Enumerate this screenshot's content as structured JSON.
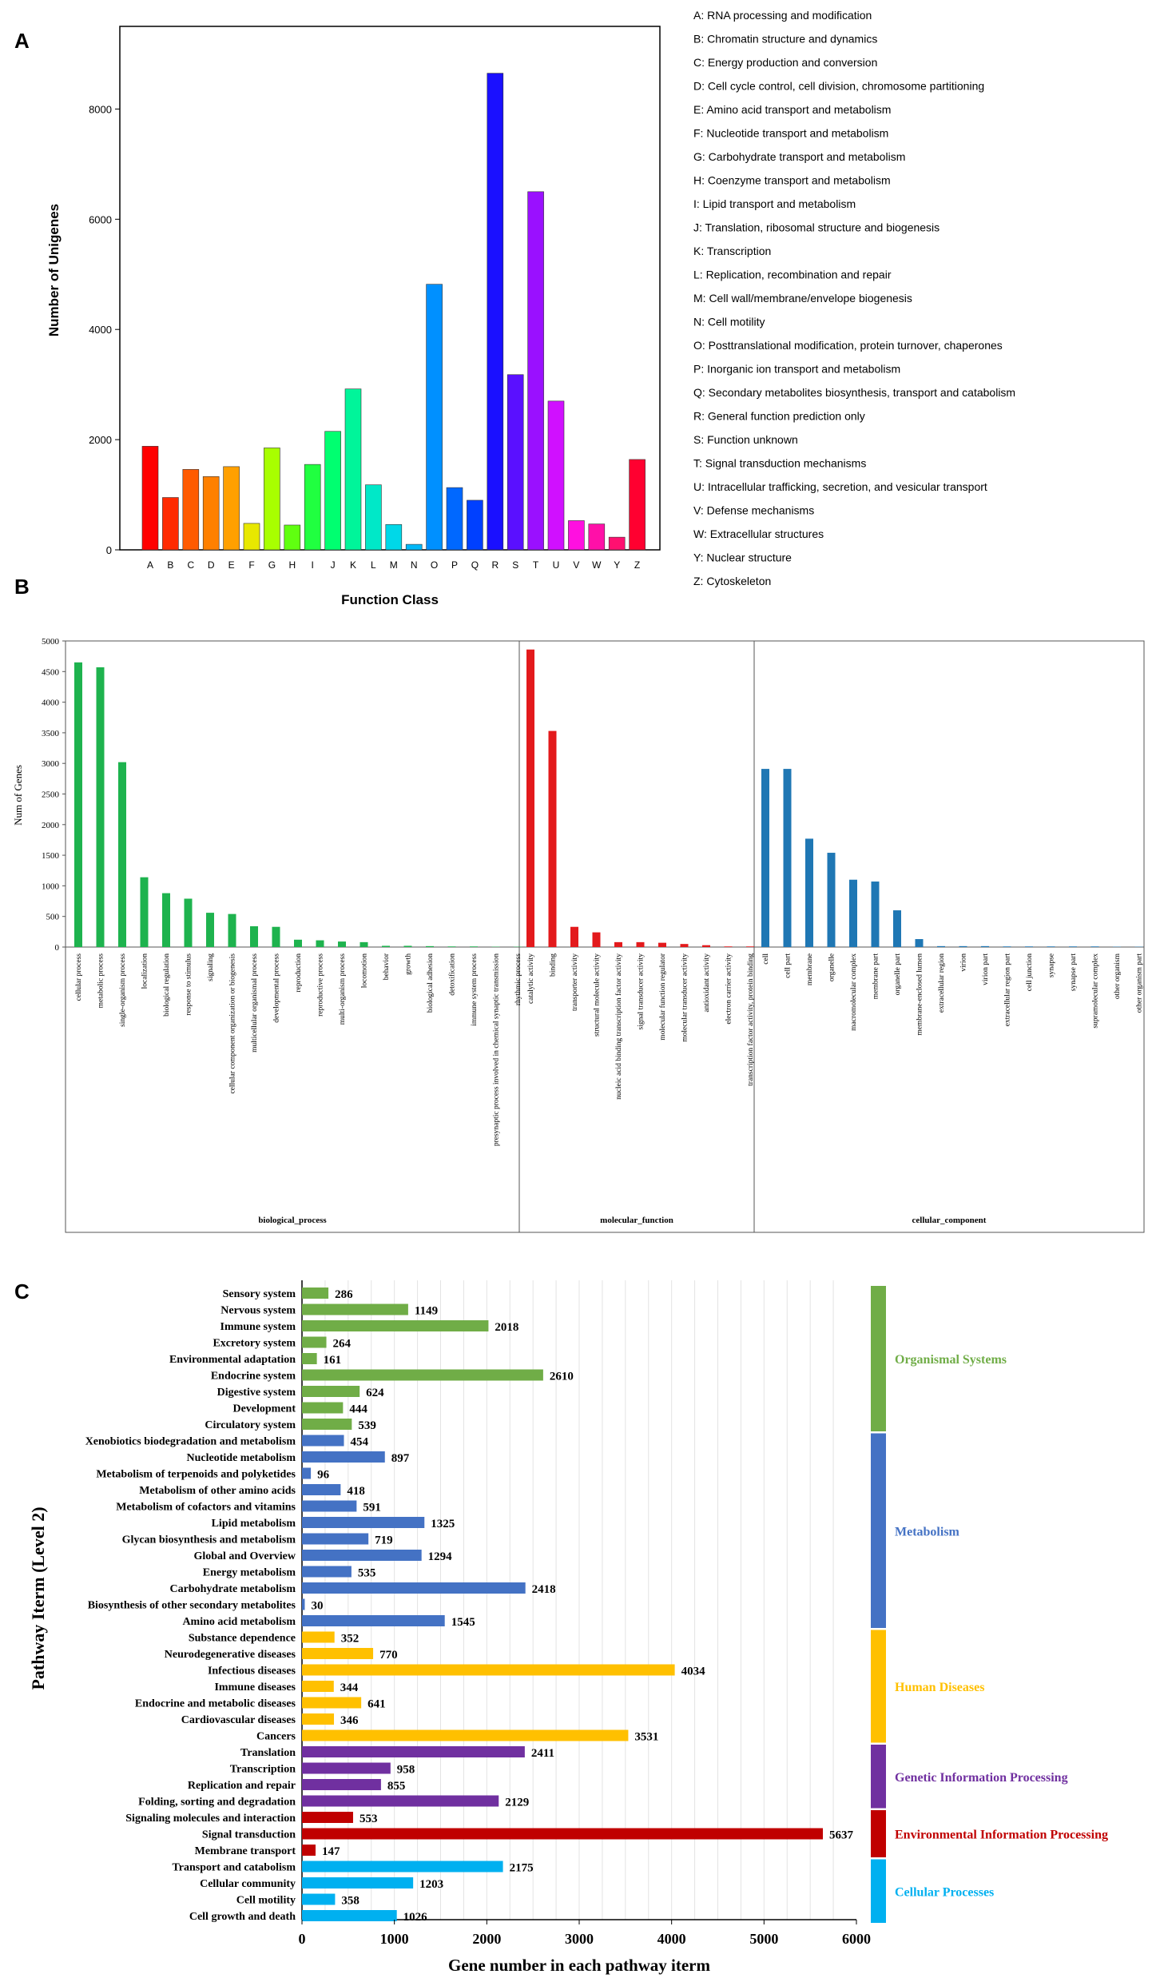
{
  "panels": {
    "a": "A",
    "b": "B",
    "c": "C"
  },
  "colors": {
    "organismal": "#70AD47",
    "metabolism": "#4472C4",
    "human_diseases": "#FFC000",
    "genetic": "#7030A0",
    "environmental": "#C00000",
    "cellular_processes": "#00B0F0",
    "bp": "#1EB34E",
    "mf": "#E31A1C",
    "cc": "#1F77B4"
  },
  "chart_data": [
    {
      "type": "bar",
      "panel": "A",
      "xlabel": "Function Class",
      "ylabel": "Number of Unigenes",
      "ylim": [
        0,
        9500
      ],
      "yticks": [
        0,
        2000,
        4000,
        6000,
        8000
      ],
      "grid": false,
      "legend_position": "right",
      "categories": [
        "A",
        "B",
        "C",
        "D",
        "E",
        "F",
        "G",
        "H",
        "I",
        "J",
        "K",
        "L",
        "M",
        "N",
        "O",
        "P",
        "Q",
        "R",
        "S",
        "T",
        "U",
        "V",
        "W",
        "Y",
        "Z"
      ],
      "values": [
        1880,
        950,
        1460,
        1330,
        1510,
        480,
        1850,
        450,
        1550,
        2150,
        2920,
        1180,
        460,
        100,
        4820,
        1130,
        900,
        8650,
        3180,
        6500,
        2700,
        530,
        470,
        230,
        1640
      ],
      "bar_colors": [
        "#FF0000",
        "#FF2A00",
        "#FF5A00",
        "#FF8000",
        "#FFA000",
        "#E8E800",
        "#A8FF00",
        "#60FF10",
        "#20FF40",
        "#00FF70",
        "#00F59A",
        "#00E8C8",
        "#00D8E8",
        "#00B8F8",
        "#0090FF",
        "#0068FF",
        "#0040FF",
        "#1A10FF",
        "#5A10FF",
        "#9A10FF",
        "#D010FF",
        "#FF10E0",
        "#FF10A8",
        "#FF1070",
        "#FF0030"
      ],
      "legend": [
        "A: RNA processing and modification",
        "B: Chromatin structure and dynamics",
        "C: Energy production and conversion",
        "D: Cell cycle control, cell division, chromosome partitioning",
        "E: Amino acid transport and metabolism",
        "F: Nucleotide transport and metabolism",
        "G: Carbohydrate transport and metabolism",
        "H: Coenzyme transport and metabolism",
        "I: Lipid transport and metabolism",
        "J: Translation, ribosomal structure and biogenesis",
        "K: Transcription",
        "L: Replication, recombination and repair",
        "M: Cell wall/membrane/envelope biogenesis",
        "N: Cell motility",
        "O: Posttranslational modification, protein turnover, chaperones",
        "P: Inorganic ion transport and metabolism",
        "Q: Secondary metabolites biosynthesis, transport and catabolism",
        "R: General function prediction only",
        "S: Function unknown",
        "T: Signal transduction mechanisms",
        "U: Intracellular trafficking, secretion, and vesicular transport",
        "V: Defense mechanisms",
        "W: Extracellular structures",
        "Y: Nuclear structure",
        "Z: Cytoskeleton"
      ]
    },
    {
      "type": "bar",
      "panel": "B",
      "ylabel": "Num of Genes",
      "ylim": [
        0,
        5000
      ],
      "yticks": [
        0,
        500,
        1000,
        1500,
        2000,
        2500,
        3000,
        3500,
        4000,
        4500,
        5000
      ],
      "grid": false,
      "groups": [
        {
          "name": "biological_process",
          "color_key": "bp",
          "categories": [
            "cellular process",
            "metabolic process",
            "single-organism process",
            "localization",
            "biological regulation",
            "response to stimulus",
            "signaling",
            "cellular component organization or biogenesis",
            "multicellular organismal process",
            "developmental process",
            "reproduction",
            "reproductive process",
            "multi-organism process",
            "locomotion",
            "behavior",
            "growth",
            "biological adhesion",
            "detoxification",
            "immune system process",
            "presynaptic process involved in chemical synaptic transmission",
            "rhythmic process"
          ],
          "values": [
            4650,
            4570,
            3020,
            1140,
            880,
            790,
            560,
            540,
            340,
            330,
            120,
            110,
            90,
            80,
            20,
            20,
            15,
            10,
            10,
            5,
            5
          ]
        },
        {
          "name": "molecular_function",
          "color_key": "mf",
          "categories": [
            "catalytic activity",
            "binding",
            "transporter activity",
            "structural molecule activity",
            "nucleic acid binding transcription factor activity",
            "signal transducer activity",
            "molecular function regulator",
            "molecular transducer activity",
            "antioxidant activity",
            "electron carrier activity",
            "transcription factor activity, protein binding"
          ],
          "values": [
            4860,
            3530,
            330,
            240,
            80,
            80,
            70,
            50,
            30,
            10,
            10
          ]
        },
        {
          "name": "cellular_component",
          "color_key": "cc",
          "categories": [
            "cell",
            "cell part",
            "membrane",
            "organelle",
            "macromolecular complex",
            "membrane part",
            "organelle part",
            "membrane-enclosed lumen",
            "extracellular region",
            "virion",
            "virion part",
            "extracellular region part",
            "cell junction",
            "synapse",
            "synapse part",
            "supramolecular complex",
            "other organism",
            "other organism part"
          ],
          "values": [
            2910,
            2910,
            1770,
            1540,
            1100,
            1070,
            600,
            130,
            15,
            15,
            15,
            10,
            10,
            10,
            10,
            10,
            5,
            5
          ]
        }
      ]
    },
    {
      "type": "bar",
      "orientation": "horizontal",
      "panel": "C",
      "xlabel": "Gene number in each pathway iterm",
      "ylabel": "Pathway Iterm (Level 2)",
      "xlim": [
        0,
        6000
      ],
      "xticks": [
        0,
        1000,
        2000,
        3000,
        4000,
        5000,
        6000
      ],
      "grid": true,
      "bars": [
        {
          "label": "Sensory system",
          "value": 286,
          "cls": "organismal"
        },
        {
          "label": "Nervous system",
          "value": 1149,
          "cls": "organismal"
        },
        {
          "label": "Immune system",
          "value": 2018,
          "cls": "organismal"
        },
        {
          "label": "Excretory system",
          "value": 264,
          "cls": "organismal"
        },
        {
          "label": "Environmental adaptation",
          "value": 161,
          "cls": "organismal"
        },
        {
          "label": "Endocrine system",
          "value": 2610,
          "cls": "organismal"
        },
        {
          "label": "Digestive system",
          "value": 624,
          "cls": "organismal"
        },
        {
          "label": "Development",
          "value": 444,
          "cls": "organismal"
        },
        {
          "label": "Circulatory system",
          "value": 539,
          "cls": "organismal"
        },
        {
          "label": "Xenobiotics biodegradation and metabolism",
          "value": 454,
          "cls": "metabolism"
        },
        {
          "label": "Nucleotide metabolism",
          "value": 897,
          "cls": "metabolism"
        },
        {
          "label": "Metabolism of terpenoids and polyketides",
          "value": 96,
          "cls": "metabolism"
        },
        {
          "label": "Metabolism of other amino acids",
          "value": 418,
          "cls": "metabolism"
        },
        {
          "label": "Metabolism of cofactors and vitamins",
          "value": 591,
          "cls": "metabolism"
        },
        {
          "label": "Lipid metabolism",
          "value": 1325,
          "cls": "metabolism"
        },
        {
          "label": "Glycan biosynthesis and metabolism",
          "value": 719,
          "cls": "metabolism"
        },
        {
          "label": "Global and Overview",
          "value": 1294,
          "cls": "metabolism"
        },
        {
          "label": "Energy metabolism",
          "value": 535,
          "cls": "metabolism"
        },
        {
          "label": "Carbohydrate metabolism",
          "value": 2418,
          "cls": "metabolism"
        },
        {
          "label": "Biosynthesis of other secondary metabolites",
          "value": 30,
          "cls": "metabolism"
        },
        {
          "label": "Amino acid metabolism",
          "value": 1545,
          "cls": "metabolism"
        },
        {
          "label": "Substance dependence",
          "value": 352,
          "cls": "human_diseases"
        },
        {
          "label": "Neurodegenerative diseases",
          "value": 770,
          "cls": "human_diseases"
        },
        {
          "label": "Infectious diseases",
          "value": 4034,
          "cls": "human_diseases"
        },
        {
          "label": "Immune diseases",
          "value": 344,
          "cls": "human_diseases"
        },
        {
          "label": "Endocrine and metabolic diseases",
          "value": 641,
          "cls": "human_diseases"
        },
        {
          "label": "Cardiovascular diseases",
          "value": 346,
          "cls": "human_diseases"
        },
        {
          "label": "Cancers",
          "value": 3531,
          "cls": "human_diseases"
        },
        {
          "label": "Translation",
          "value": 2411,
          "cls": "genetic"
        },
        {
          "label": "Transcription",
          "value": 958,
          "cls": "genetic"
        },
        {
          "label": "Replication and repair",
          "value": 855,
          "cls": "genetic"
        },
        {
          "label": "Folding, sorting and degradation",
          "value": 2129,
          "cls": "genetic"
        },
        {
          "label": "Signaling molecules and interaction",
          "value": 553,
          "cls": "environmental"
        },
        {
          "label": "Signal transduction",
          "value": 5637,
          "cls": "environmental"
        },
        {
          "label": "Membrane transport",
          "value": 147,
          "cls": "environmental"
        },
        {
          "label": "Transport and catabolism",
          "value": 2175,
          "cls": "cellular_processes"
        },
        {
          "label": "Cellular community",
          "value": 1203,
          "cls": "cellular_processes"
        },
        {
          "label": "Cell motility",
          "value": 358,
          "cls": "cellular_processes"
        },
        {
          "label": "Cell growth and death",
          "value": 1026,
          "cls": "cellular_processes"
        }
      ],
      "categories_legend": [
        {
          "cls": "organismal",
          "label": "Organismal Systems"
        },
        {
          "cls": "metabolism",
          "label": "Metabolism"
        },
        {
          "cls": "human_diseases",
          "label": "Human Diseases"
        },
        {
          "cls": "genetic",
          "label": "Genetic Information Processing"
        },
        {
          "cls": "environmental",
          "label": "Environmental Information Processing"
        },
        {
          "cls": "cellular_processes",
          "label": "Cellular Processes"
        }
      ]
    }
  ]
}
